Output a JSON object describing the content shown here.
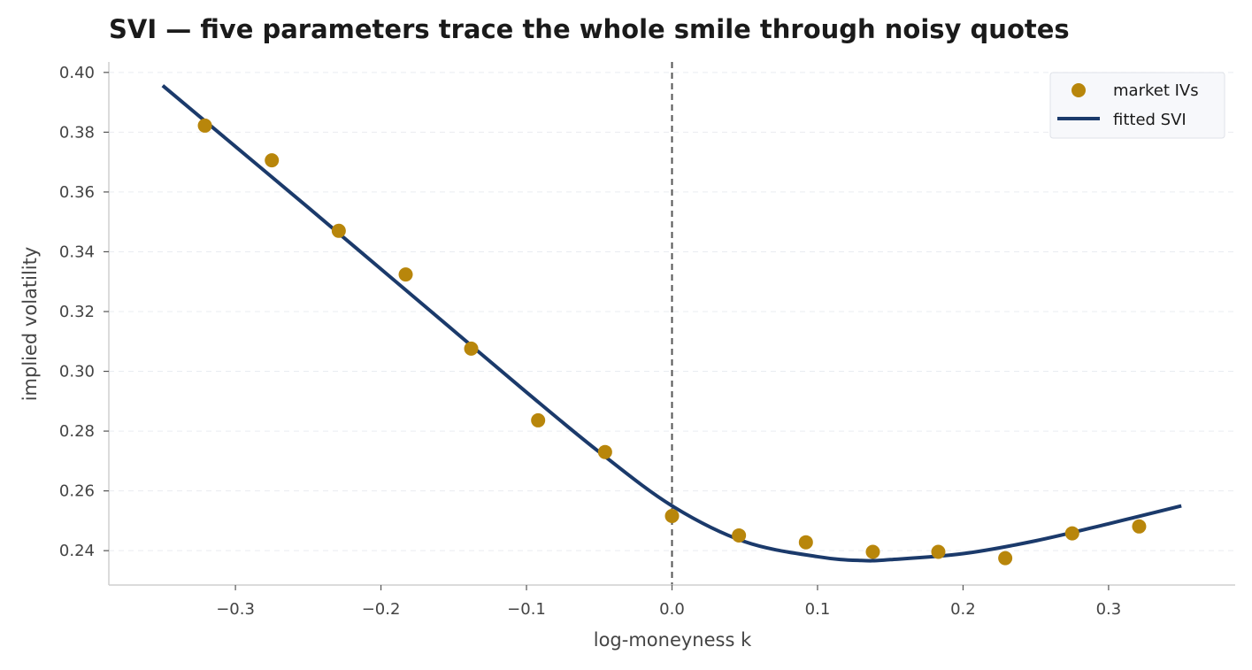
{
  "chart_data": {
    "type": "scatter",
    "title": "SVI — five parameters trace the whole smile through noisy quotes",
    "xlabel": "log-moneyness k",
    "ylabel": "implied volatility",
    "xlim": [
      -0.387,
      0.387
    ],
    "ylim": [
      0.2285,
      0.4035
    ],
    "x_ticks": [
      -0.3,
      -0.2,
      -0.1,
      0.0,
      0.1,
      0.2,
      0.3
    ],
    "x_tick_labels": [
      "−0.3",
      "−0.2",
      "−0.1",
      "0.0",
      "0.1",
      "0.2",
      "0.3"
    ],
    "y_ticks": [
      0.24,
      0.26,
      0.28,
      0.3,
      0.32,
      0.34,
      0.36,
      0.38,
      0.4
    ],
    "y_tick_labels": [
      "0.24",
      "0.26",
      "0.28",
      "0.30",
      "0.32",
      "0.34",
      "0.36",
      "0.38",
      "0.40"
    ],
    "grid": "horizontal-dashed",
    "vline_x": 0.0,
    "legend_position": "top-right",
    "colors": {
      "points": "#b8860b",
      "line": "#1b3a6b",
      "vline": "#555555"
    },
    "series": [
      {
        "name": "market IVs",
        "kind": "scatter",
        "x": [
          -0.321,
          -0.275,
          -0.229,
          -0.183,
          -0.138,
          -0.092,
          -0.046,
          0.0,
          0.046,
          0.092,
          0.138,
          0.183,
          0.229,
          0.275,
          0.321
        ],
        "y": [
          0.3822,
          0.3706,
          0.347,
          0.3324,
          0.3076,
          0.2836,
          0.273,
          0.2516,
          0.2451,
          0.2428,
          0.2396,
          0.2396,
          0.2375,
          0.2458,
          0.2481
        ]
      },
      {
        "name": "fitted SVI",
        "kind": "line",
        "x": [
          -0.35,
          -0.3,
          -0.25,
          -0.2,
          -0.15,
          -0.1,
          -0.05,
          0.0,
          0.05,
          0.1,
          0.13,
          0.15,
          0.2,
          0.25,
          0.3,
          0.35
        ],
        "y": [
          0.3956,
          0.3752,
          0.3548,
          0.3342,
          0.3136,
          0.293,
          0.273,
          0.255,
          0.243,
          0.238,
          0.2367,
          0.237,
          0.239,
          0.2433,
          0.249,
          0.255
        ]
      }
    ]
  }
}
